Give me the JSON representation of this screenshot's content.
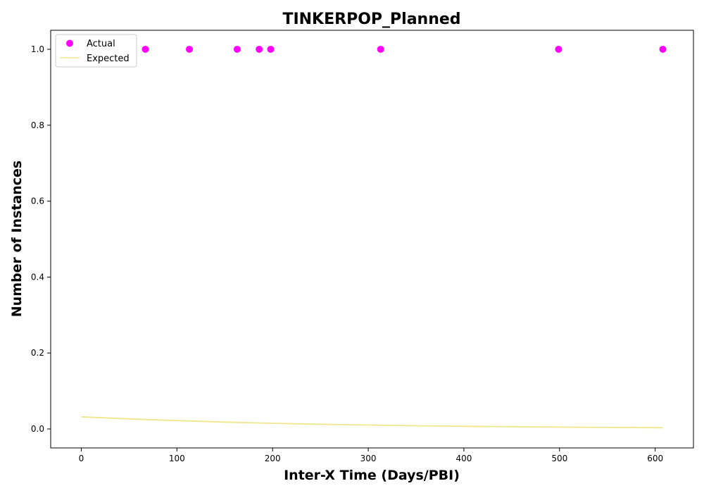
{
  "chart_data": {
    "type": "scatter",
    "title": "TINKERPOP_Planned",
    "xlabel": "Inter-X Time (Days/PBI)",
    "ylabel": "Number of Instances",
    "xlim": [
      -32,
      640
    ],
    "ylim": [
      -0.05,
      1.05
    ],
    "x_ticks": [
      0,
      100,
      200,
      300,
      400,
      500,
      600
    ],
    "y_ticks": [
      0.0,
      0.2,
      0.4,
      0.6,
      0.8,
      1.0
    ],
    "x_tick_labels": [
      "0",
      "100",
      "200",
      "300",
      "400",
      "500",
      "600"
    ],
    "y_tick_labels": [
      "0.0",
      "0.2",
      "0.4",
      "0.6",
      "0.8",
      "1.0"
    ],
    "grid": false,
    "legend_position": "top-left",
    "series": [
      {
        "name": "Actual",
        "kind": "scatter",
        "color": "#ff00ff",
        "x": [
          67,
          113,
          163,
          186,
          198,
          313,
          499,
          608
        ],
        "y": [
          1,
          1,
          1,
          1,
          1,
          1,
          1,
          1
        ]
      },
      {
        "name": "Expected",
        "kind": "line",
        "color": "#f0e68c",
        "x": [
          0,
          50,
          100,
          150,
          200,
          250,
          300,
          350,
          400,
          450,
          500,
          550,
          608
        ],
        "y": [
          0.032,
          0.0265,
          0.0219,
          0.0181,
          0.015,
          0.0124,
          0.0102,
          0.0085,
          0.007,
          0.0058,
          0.0048,
          0.004,
          0.0032
        ]
      }
    ]
  }
}
